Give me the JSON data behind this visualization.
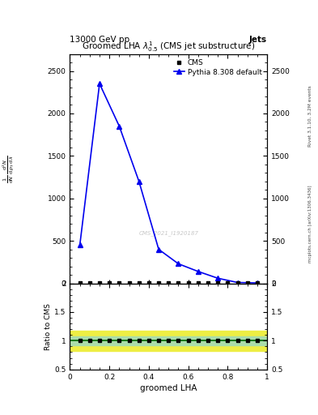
{
  "title_top": "13000 GeV pp",
  "title_right": "Jets",
  "plot_title": "Groomed LHA $\\lambda^{1}_{0.5}$ (CMS jet substructure)",
  "xlabel": "groomed LHA",
  "ylabel_ratio": "Ratio to CMS",
  "right_label": "Rivet 3.1.10, 3.2M events",
  "right_label2": "mcplots.cern.ch [arXiv:1306.3436]",
  "watermark": "CMS_2021_I1920187",
  "cms_x": [
    0.05,
    0.1,
    0.15,
    0.2,
    0.25,
    0.3,
    0.35,
    0.4,
    0.45,
    0.5,
    0.55,
    0.6,
    0.65,
    0.7,
    0.75,
    0.8,
    0.85,
    0.9,
    0.95
  ],
  "cms_y": [
    2,
    2,
    2,
    2,
    2,
    2,
    2,
    2,
    2,
    2,
    2,
    2,
    2,
    2,
    2,
    2,
    2,
    2,
    2
  ],
  "pythia_x": [
    0.05,
    0.15,
    0.25,
    0.35,
    0.45,
    0.55,
    0.65,
    0.75,
    0.85,
    0.95
  ],
  "pythia_y": [
    450,
    2350,
    1850,
    1200,
    400,
    230,
    140,
    60,
    10,
    5
  ],
  "ratio_green_low": 0.92,
  "ratio_green_high": 1.08,
  "ratio_yellow_low": 0.82,
  "ratio_yellow_high": 1.18,
  "ylim_main": [
    0,
    2700
  ],
  "ylim_ratio": [
    0.5,
    2.0
  ],
  "xlim": [
    0.0,
    1.0
  ],
  "blue_color": "#0000ee",
  "cms_color": "#000000",
  "green_band_color": "#aaddaa",
  "yellow_band_color": "#eeee44",
  "background": "#ffffff"
}
